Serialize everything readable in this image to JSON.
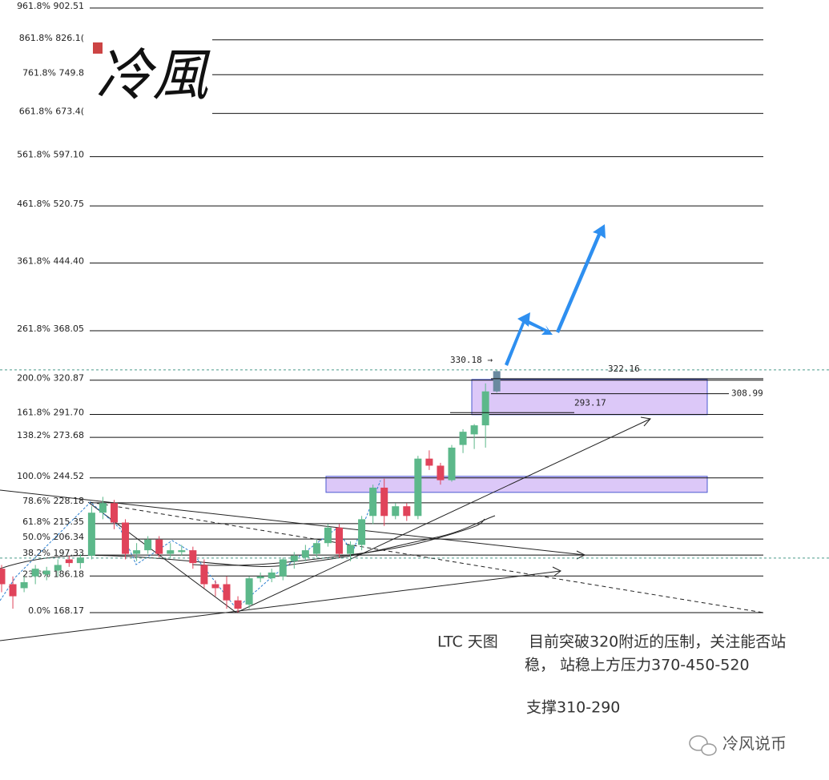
{
  "chart_data": {
    "type": "candlestick",
    "log_scale": true,
    "ylim": [
      168.17,
      902.51
    ],
    "yticks": [
      {
        "value": 902.51,
        "label": "961.8% 902.51"
      },
      {
        "value": 826.1,
        "label": "861.8% 826.1("
      },
      {
        "value": 749.8,
        "label": "761.8% 749.8"
      },
      {
        "value": 673.4,
        "label": "661.8% 673.4("
      },
      {
        "value": 597.1,
        "label": "561.8% 597.10"
      },
      {
        "value": 520.75,
        "label": "461.8% 520.75"
      },
      {
        "value": 444.4,
        "label": "361.8% 444.40"
      },
      {
        "value": 368.05,
        "label": "261.8% 368.05"
      },
      {
        "value": 320.87,
        "label": "200.0% 320.87"
      },
      {
        "value": 291.7,
        "label": "161.8% 291.70"
      },
      {
        "value": 273.68,
        "label": "138.2% 273.68"
      },
      {
        "value": 244.52,
        "label": "100.0% 244.52"
      },
      {
        "value": 228.18,
        "label": "78.6% 228.18"
      },
      {
        "value": 215.35,
        "label": "61.8% 215.35"
      },
      {
        "value": 206.34,
        "label": "50.0% 206.34"
      },
      {
        "value": 197.33,
        "label": "38.2% 197.33"
      },
      {
        "value": 186.18,
        "label": "23.6% 186.18"
      },
      {
        "value": 168.17,
        "label": "0.0% 168.17"
      }
    ],
    "up_color": "#5cb88a",
    "down_color": "#e0435a",
    "open": [
      190,
      182,
      180,
      186,
      187,
      189,
      195,
      193,
      197,
      222,
      228,
      216,
      198,
      200,
      206,
      198,
      199,
      200,
      192,
      182,
      182,
      174,
      172,
      185,
      185,
      186,
      194,
      196,
      198,
      204,
      213,
      198,
      203,
      220,
      238,
      220,
      226,
      220,
      258,
      253,
      243,
      268,
      276,
      283,
      311
    ],
    "close": [
      182,
      176,
      183,
      190,
      189,
      192,
      193,
      196,
      222,
      228,
      216,
      198,
      200,
      206,
      198,
      200,
      200,
      193,
      182,
      180,
      174,
      170,
      185,
      186,
      188,
      195,
      197,
      200,
      204,
      213,
      198,
      203,
      218,
      238,
      220,
      226,
      220,
      258,
      253,
      243,
      266,
      278,
      283,
      311,
      329
    ],
    "high": [
      192,
      186,
      186,
      192,
      191,
      195,
      197,
      198,
      226,
      232,
      230,
      218,
      204,
      208,
      208,
      204,
      203,
      202,
      195,
      184,
      186,
      176,
      186,
      188,
      190,
      196,
      199,
      203,
      206,
      215,
      215,
      205,
      220,
      240,
      244,
      228,
      228,
      260,
      264,
      255,
      268,
      280,
      284,
      318,
      330.18
    ],
    "low": [
      178,
      170,
      178,
      182,
      184,
      186,
      191,
      190,
      195,
      218,
      212,
      195,
      194,
      198,
      196,
      196,
      197,
      190,
      180,
      176,
      170,
      168.17,
      170,
      183,
      183,
      184,
      190,
      194,
      196,
      202,
      196,
      194,
      200,
      215,
      214,
      218,
      217,
      218,
      250,
      240,
      242,
      262,
      265,
      266,
      310
    ],
    "zones": [
      [
        291.5,
        321.5
      ],
      [
        234.9,
        245.6
      ]
    ],
    "zone_color": "#dcc8f8",
    "ref_lines": [
      330.18,
      195.7
    ],
    "annotations": [
      {
        "value": 330.18,
        "label": "330.18 →"
      },
      {
        "value": 322.16,
        "label": "322.16"
      },
      {
        "value": 308.99,
        "label": "308.99"
      },
      {
        "value": 293.17,
        "label": "293.17"
      }
    ],
    "logo": "冷風",
    "caption_title": "LTC 天图",
    "caption_lines": [
      "目前突破320附近的压制，关注能否站",
      "稳， 站稳上方压力370-450-520",
      "支撑310-290"
    ],
    "brand": "冷风说币"
  }
}
